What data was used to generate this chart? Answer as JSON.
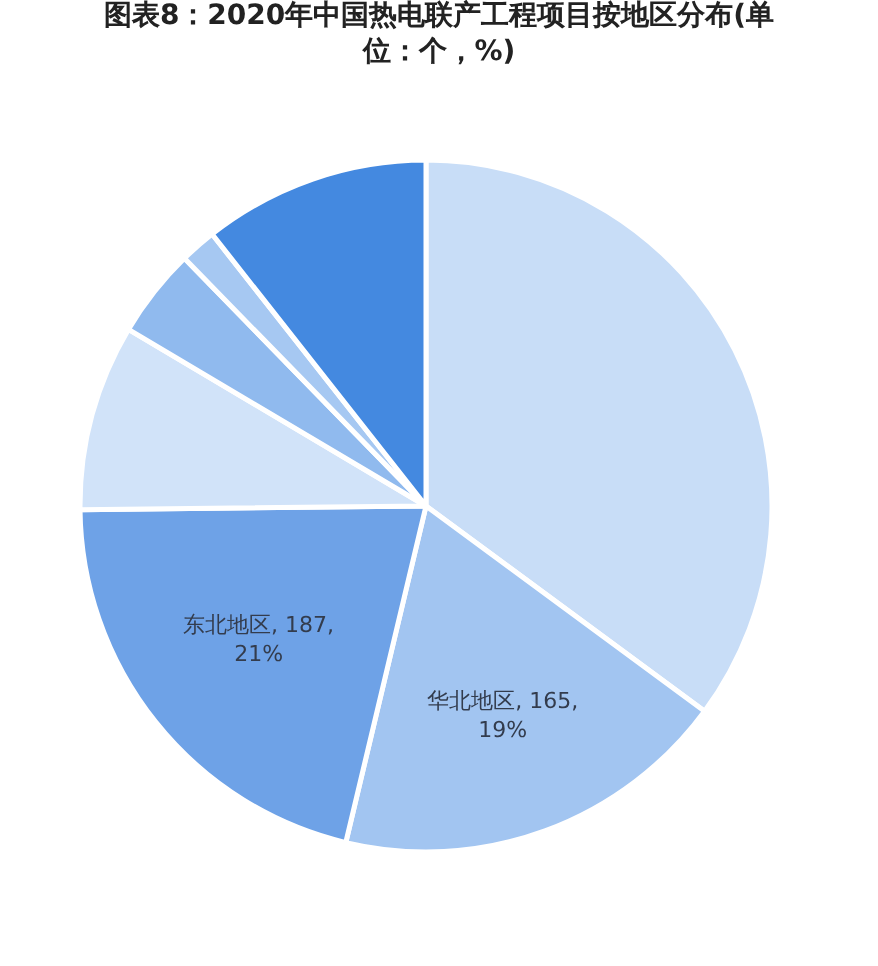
{
  "chart_data": {
    "type": "pie",
    "title": "图表8：2020年中国热电联产工程项目按地区分布(单位：个，%)",
    "categories": [
      null,
      "华北地区",
      "东北地区",
      null,
      null,
      null,
      null
    ],
    "values": [
      311,
      165,
      187,
      77,
      37,
      15,
      94
    ],
    "colors": [
      "#c8ddf7",
      "#a2c5f1",
      "#6ea2e7",
      "#d1e3f9",
      "#90baee",
      "#a6c8f2",
      "#4489e0"
    ],
    "value_labels": [
      null,
      "165, 19%",
      "187, 21%",
      null,
      null,
      null,
      null
    ]
  }
}
